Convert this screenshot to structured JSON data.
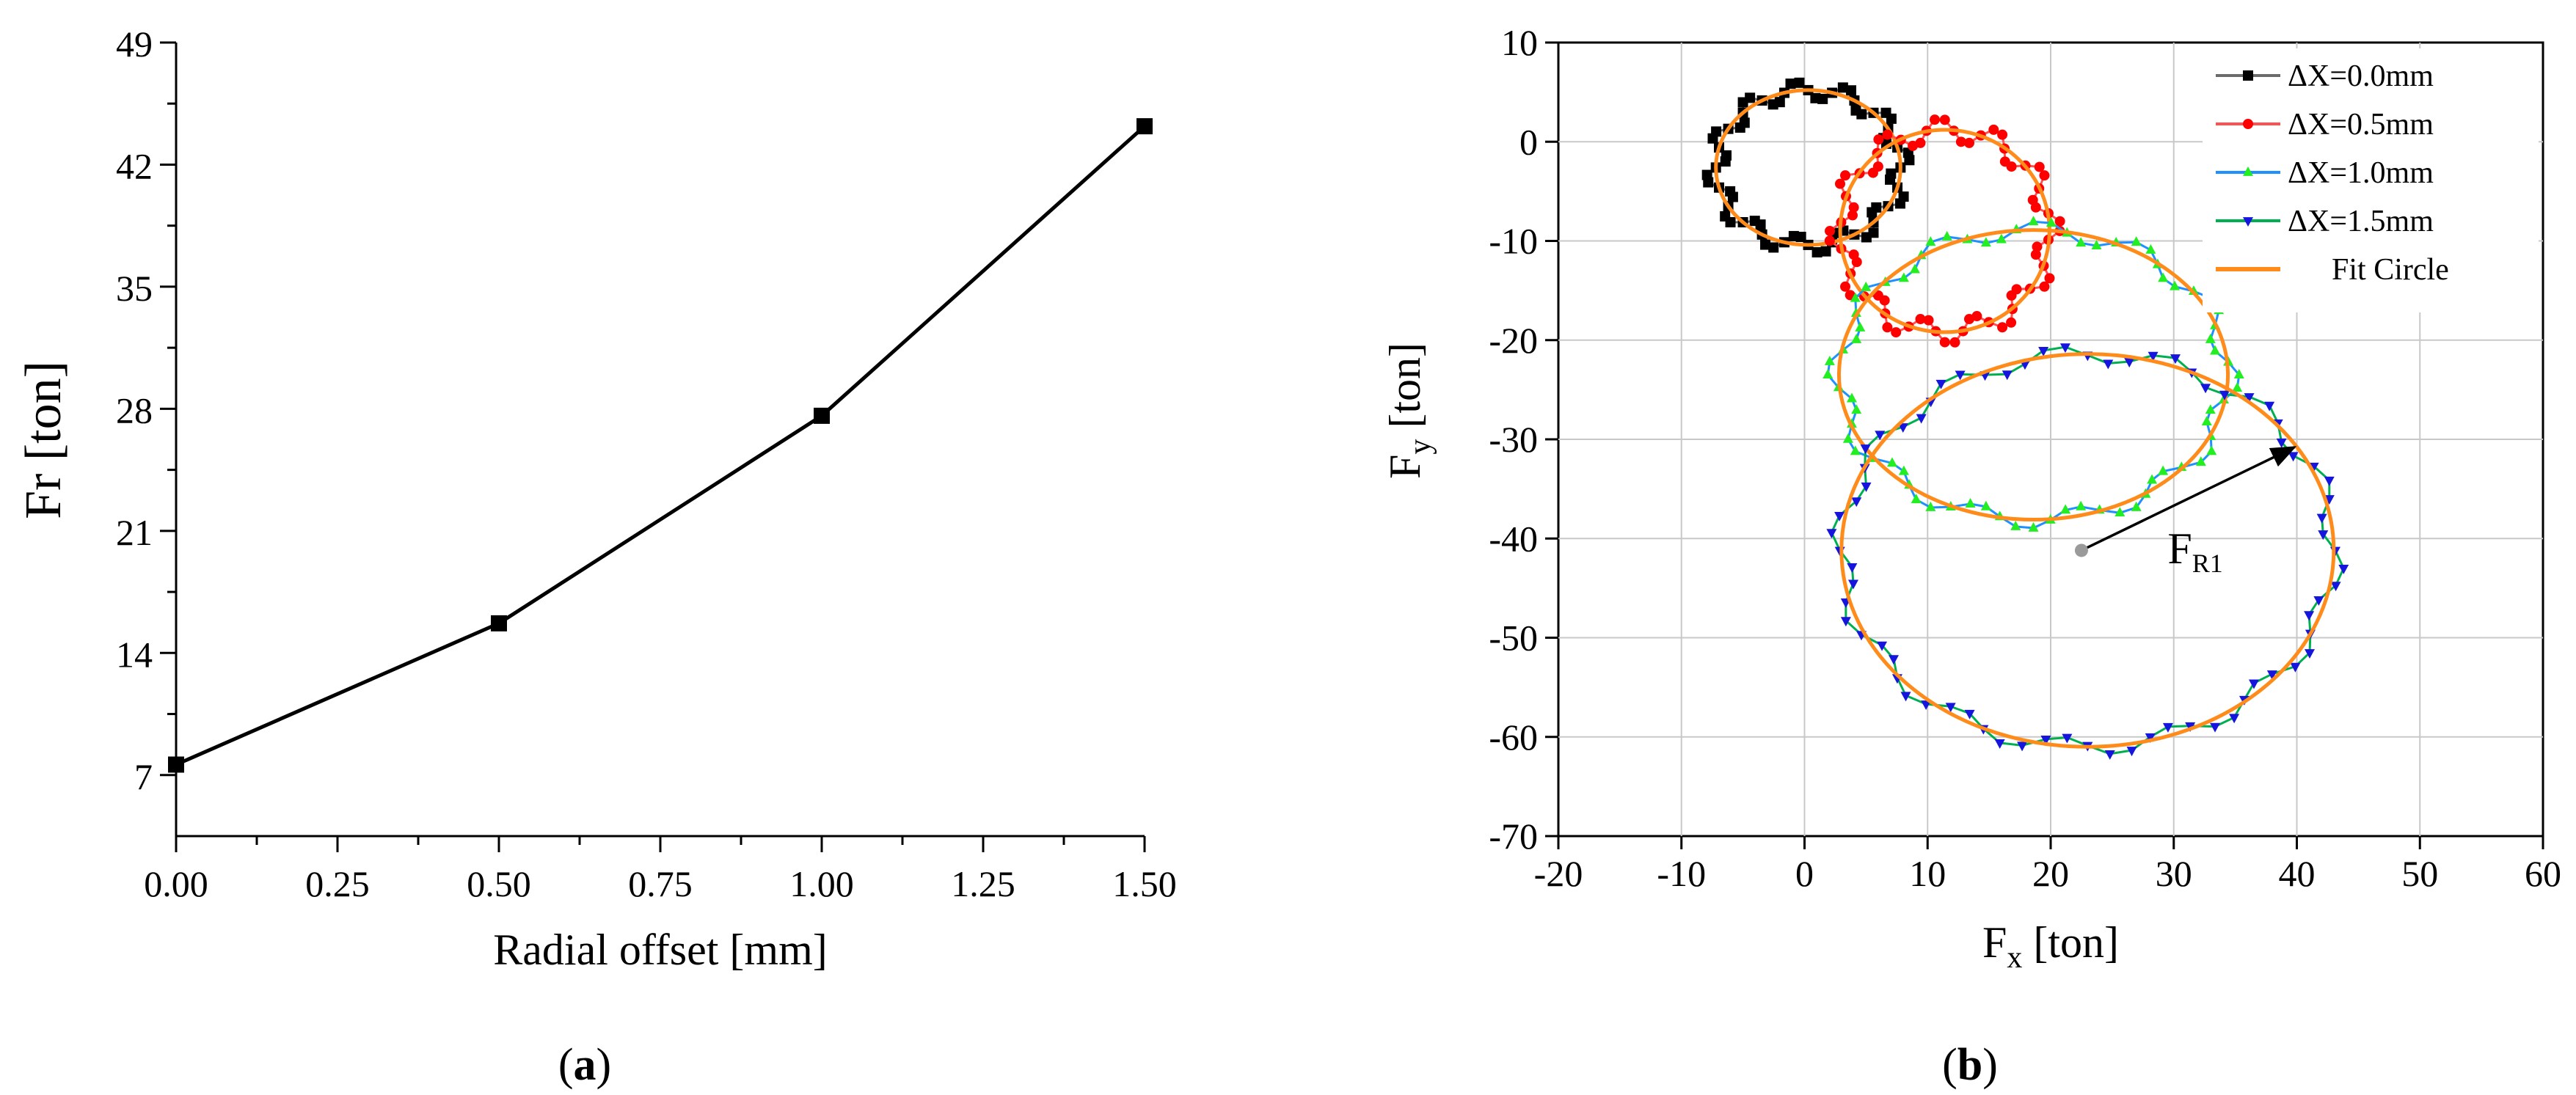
{
  "chart_data": [
    {
      "id": "a",
      "type": "line",
      "panel_label_open": "(",
      "panel_label_letter": "a",
      "panel_label_close": ")",
      "xlabel": "Radial offset [mm]",
      "ylabel": "Fr [ton]",
      "xlim": [
        0,
        1.5
      ],
      "ylim": [
        3.5,
        49
      ],
      "x_ticks": [
        "0.00",
        "0.25",
        "0.50",
        "0.75",
        "1.00",
        "1.25",
        "1.50"
      ],
      "y_ticks": [
        "7",
        "14",
        "21",
        "28",
        "35",
        "42",
        "49"
      ],
      "x_tick_values": [
        0,
        0.25,
        0.5,
        0.75,
        1.0,
        1.25,
        1.5
      ],
      "y_tick_values": [
        7,
        14,
        21,
        28,
        35,
        42,
        49
      ],
      "series": [
        {
          "name": "Fr",
          "marker": "square",
          "color": "#000000",
          "x": [
            0,
            0.5,
            1.0,
            1.5
          ],
          "y": [
            7.6,
            15.7,
            27.6,
            44.2
          ]
        }
      ]
    },
    {
      "id": "b",
      "type": "scatter",
      "panel_label_open": "(",
      "panel_label_letter": "b",
      "panel_label_close": ")",
      "xlabel_main": "F",
      "xlabel_sub": "x",
      "xlabel_unit": " [ton]",
      "ylabel_main": "F",
      "ylabel_sub": "y",
      "ylabel_unit": " [ton]",
      "xlim": [
        -20,
        60
      ],
      "ylim": [
        -70,
        10
      ],
      "x_ticks": [
        "-20",
        "-10",
        "0",
        "10",
        "20",
        "30",
        "40",
        "50",
        "60"
      ],
      "y_ticks": [
        "10",
        "0",
        "-10",
        "-20",
        "-30",
        "-40",
        "-50",
        "-60",
        "-70"
      ],
      "x_tick_values": [
        -20,
        -10,
        0,
        10,
        20,
        30,
        40,
        50,
        60
      ],
      "y_tick_values": [
        10,
        0,
        -10,
        -20,
        -30,
        -40,
        -50,
        -60,
        -70
      ],
      "grid": true,
      "legend_position": "top-right",
      "series": [
        {
          "name": "ΔX=0.0mm",
          "color": "#000000",
          "line_color": "#6b6b6b",
          "marker": "square",
          "center": [
            0.3,
            -2.6
          ],
          "radius_x": 7.5,
          "radius_y": 7.8,
          "ripple": 0.9,
          "ripple_count": 12
        },
        {
          "name": "ΔX=0.5mm",
          "color": "#ff0000",
          "line_color": "#ff5050",
          "marker": "circle",
          "center": [
            11.4,
            -9.0
          ],
          "radius_x": 8.5,
          "radius_y": 10.2,
          "ripple": 1.2,
          "ripple_count": 12
        },
        {
          "name": "ΔX=1.0mm",
          "color": "#22ee22",
          "line_color": "#1e90ff",
          "marker": "triangle-up",
          "center": [
            18.6,
            -23.5
          ],
          "radius_x": 15.8,
          "radius_y": 14.6,
          "ripple": 1.0,
          "ripple_count": 12
        },
        {
          "name": "ΔX=1.5mm",
          "color": "#1515dd",
          "line_color": "#00b050",
          "marker": "triangle-down",
          "center": [
            23.0,
            -41.2
          ],
          "radius_x": 20.0,
          "radius_y": 19.8,
          "ripple": 0.9,
          "ripple_count": 14
        }
      ],
      "fit_circle": {
        "name": "Fit Circle",
        "color": "#ff8c1a"
      },
      "annotation": {
        "label_main": "F",
        "label_sub": "R1",
        "from": [
          22.5,
          -41.2
        ],
        "to": [
          39.8,
          -30.8
        ],
        "label_at": [
          29.5,
          -42.5
        ],
        "center_dot_color": "#9a9a9a"
      }
    }
  ]
}
